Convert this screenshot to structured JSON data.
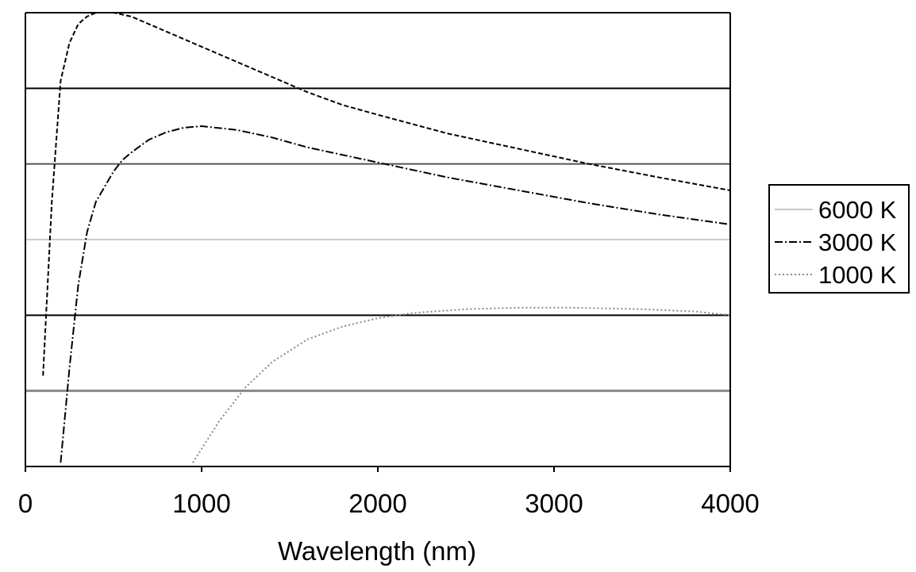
{
  "chart_data": {
    "type": "line",
    "title": "",
    "xlabel": "Wavelength (nm)",
    "ylabel": "",
    "xlim": [
      0,
      4000
    ],
    "ylim": [
      0,
      6
    ],
    "x_ticks": [
      "0",
      "1000",
      "2000",
      "3000",
      "4000"
    ],
    "grid": "horizontal",
    "legend_position": "right",
    "series": [
      {
        "name": "6000 K",
        "color": "#000000",
        "dash": "6,3",
        "x": [
          100,
          150,
          200,
          250,
          300,
          350,
          400,
          450,
          500,
          600,
          700,
          800,
          1000,
          1200,
          1400,
          1600,
          1800,
          2000,
          2400,
          2800,
          3200,
          3600,
          4000
        ],
        "y": [
          1.2,
          3.5,
          5.1,
          5.6,
          5.85,
          5.95,
          6.0,
          6.0,
          6.0,
          5.95,
          5.85,
          5.75,
          5.55,
          5.35,
          5.15,
          4.95,
          4.78,
          4.65,
          4.4,
          4.2,
          4.0,
          3.82,
          3.65
        ]
      },
      {
        "name": "3000 K",
        "color": "#000000",
        "dash": "10,3,2,3",
        "x": [
          200,
          250,
          300,
          350,
          400,
          450,
          500,
          550,
          600,
          700,
          800,
          900,
          1000,
          1200,
          1400,
          1600,
          2000,
          2400,
          2800,
          3200,
          3600,
          4000
        ],
        "y": [
          0.05,
          1.3,
          2.4,
          3.1,
          3.5,
          3.7,
          3.9,
          4.05,
          4.15,
          4.32,
          4.42,
          4.48,
          4.5,
          4.45,
          4.35,
          4.22,
          4.02,
          3.82,
          3.65,
          3.48,
          3.33,
          3.2
        ]
      },
      {
        "name": "1000 K",
        "color": "#888888",
        "dash": "2,3",
        "x": [
          950,
          1100,
          1250,
          1400,
          1600,
          1800,
          2000,
          2200,
          2500,
          2800,
          3100,
          3500,
          3800,
          4000
        ],
        "y": [
          0.05,
          0.6,
          1.05,
          1.38,
          1.68,
          1.85,
          1.96,
          2.03,
          2.08,
          2.1,
          2.1,
          2.08,
          2.05,
          2.0
        ]
      }
    ],
    "legend": [
      "6000 K",
      "3000 K",
      "1000 K"
    ]
  }
}
